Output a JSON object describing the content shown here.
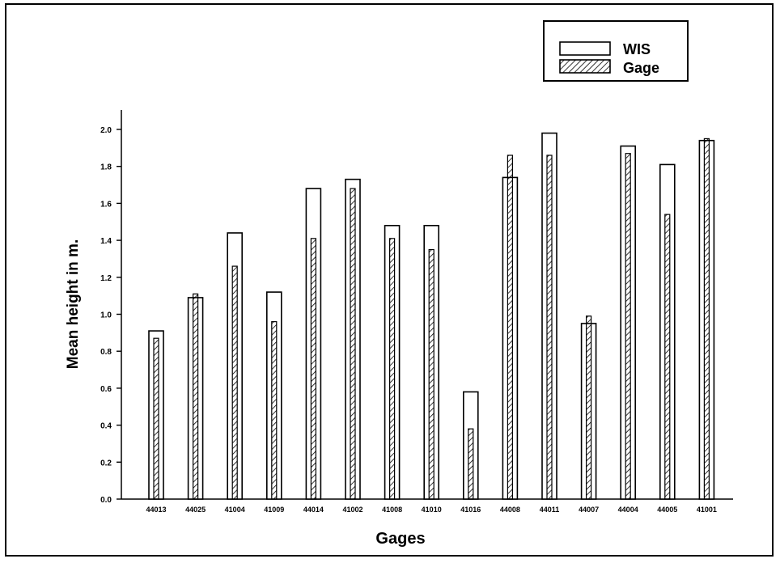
{
  "chart_data": {
    "type": "bar",
    "xlabel": "Gages",
    "ylabel": "Mean height in m.",
    "ylim": [
      0.0,
      2.1
    ],
    "y_ticks": [
      "0.0",
      "0.2",
      "0.4",
      "0.6",
      "0.8",
      "1.0",
      "1.2",
      "1.4",
      "1.6",
      "1.8",
      "2.0"
    ],
    "categories": [
      "44013",
      "44025",
      "41004",
      "41009",
      "44014",
      "41002",
      "41008",
      "41010",
      "41016",
      "44008",
      "44011",
      "44007",
      "44004",
      "44005",
      "41001"
    ],
    "series": [
      {
        "name": "WIS",
        "style": "open",
        "values": [
          0.91,
          1.09,
          1.44,
          1.12,
          1.68,
          1.73,
          1.48,
          1.48,
          0.58,
          1.74,
          1.98,
          0.95,
          1.91,
          1.81,
          1.94
        ]
      },
      {
        "name": "Gage",
        "style": "hatched",
        "values": [
          0.87,
          1.11,
          1.26,
          0.96,
          1.41,
          1.68,
          1.41,
          1.35,
          0.38,
          1.86,
          1.86,
          0.99,
          1.87,
          1.54,
          1.95
        ]
      }
    ],
    "legend": {
      "position": "top-right"
    },
    "grid": false
  },
  "colors": {
    "stroke": "#000000",
    "background": "#ffffff"
  }
}
